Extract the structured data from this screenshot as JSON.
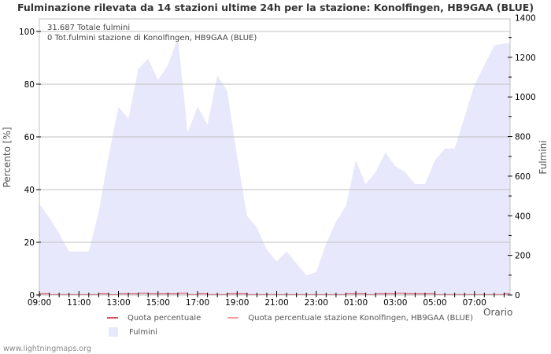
{
  "title": "Fulminazione rilevata da 14 stazioni ultime 24h per la stazione: Konolfingen, HB9GAA (BLUE)",
  "info_lines": [
    "31.687 Totale fulmini",
    "0 Tot.fulmini stazione di Konolfingen, HB9GAA (BLUE)"
  ],
  "axes": {
    "left_title": "Percento   [%]",
    "right_title": "Fulmini",
    "x_title": "Orario",
    "left_ticks": [
      "0",
      "20",
      "40",
      "60",
      "80",
      "100"
    ],
    "right_ticks": [
      "0",
      "200",
      "400",
      "600",
      "800",
      "1000",
      "1200",
      "1400"
    ],
    "x_ticks": [
      "09:00",
      "11:00",
      "13:00",
      "15:00",
      "17:00",
      "19:00",
      "21:00",
      "23:00",
      "01:00",
      "03:00",
      "05:00",
      "07:00"
    ]
  },
  "legend": {
    "quota": "Quota percentuale",
    "quota_station": "Quota percentuale stazione Konolfingen, HB9GAA (BLUE)",
    "fulmini": "Fulmini"
  },
  "colors": {
    "quota": "#d9535d",
    "quota_station": "#f2a0a0",
    "fulmini": "#e8e8fc",
    "grid": "#c0c0c0"
  },
  "footer": "www.lightningmaps.org",
  "chart_data": {
    "type": "area",
    "title": "Fulminazione rilevata da 14 stazioni ultime 24h per la stazione: Konolfingen, HB9GAA (BLUE)",
    "xlabel": "Orario",
    "ylabel": "Percento [%]",
    "y2label": "Fulmini",
    "ylim": [
      0,
      100
    ],
    "y2lim": [
      0,
      1400
    ],
    "grid": true,
    "legend_position": "bottom",
    "x": [
      "09:00",
      "09:30",
      "10:00",
      "10:30",
      "11:00",
      "11:30",
      "12:00",
      "12:30",
      "13:00",
      "13:30",
      "14:00",
      "14:30",
      "15:00",
      "15:30",
      "16:00",
      "16:30",
      "17:00",
      "17:30",
      "18:00",
      "18:30",
      "19:00",
      "19:30",
      "20:00",
      "20:30",
      "21:00",
      "21:30",
      "22:00",
      "22:30",
      "23:00",
      "23:30",
      "00:00",
      "00:30",
      "01:00",
      "01:30",
      "02:00",
      "02:30",
      "03:00",
      "03:30",
      "04:00",
      "04:30",
      "05:00",
      "05:30",
      "06:00",
      "06:30",
      "07:00",
      "07:30",
      "08:00",
      "08:30"
    ],
    "series": [
      {
        "name": "Fulmini",
        "axis": "right",
        "values": [
          460,
          390,
          310,
          220,
          220,
          220,
          420,
          700,
          950,
          890,
          1140,
          1195,
          1085,
          1160,
          1300,
          820,
          950,
          860,
          1110,
          1030,
          700,
          400,
          340,
          230,
          170,
          220,
          160,
          100,
          115,
          260,
          370,
          450,
          680,
          560,
          620,
          720,
          650,
          620,
          560,
          560,
          680,
          740,
          740,
          900,
          1060,
          1160,
          1260,
          1270
        ]
      },
      {
        "name": "Quota percentuale",
        "axis": "left",
        "values": [
          0.3,
          0,
          0,
          0,
          0,
          0,
          0.3,
          0,
          0.3,
          0.3,
          0.5,
          0.3,
          0.3,
          0.3,
          0.5,
          0,
          0.3,
          0,
          0,
          0.3,
          0.3,
          0,
          0,
          0,
          0,
          0,
          0,
          0,
          0,
          0,
          0,
          0.3,
          0.3,
          0,
          0.3,
          0.3,
          0.5,
          0.3,
          0.3,
          0.3,
          0,
          0,
          0,
          0,
          0,
          0,
          0,
          0.3
        ]
      },
      {
        "name": "Quota percentuale stazione Konolfingen, HB9GAA (BLUE)",
        "axis": "left",
        "values": [
          0,
          0,
          0,
          0,
          0,
          0,
          0,
          0,
          0,
          0,
          0,
          0,
          0,
          0,
          0,
          0,
          0,
          0,
          0,
          0,
          0,
          0,
          0,
          0,
          0,
          0,
          0,
          0,
          0,
          0,
          0,
          0,
          0,
          0,
          0,
          0,
          0,
          0,
          0,
          0,
          0,
          0,
          0,
          0,
          0,
          0,
          0,
          0
        ]
      }
    ],
    "annotations": [
      "31.687 Totale fulmini",
      "0 Tot.fulmini stazione di Konolfingen, HB9GAA (BLUE)"
    ]
  }
}
